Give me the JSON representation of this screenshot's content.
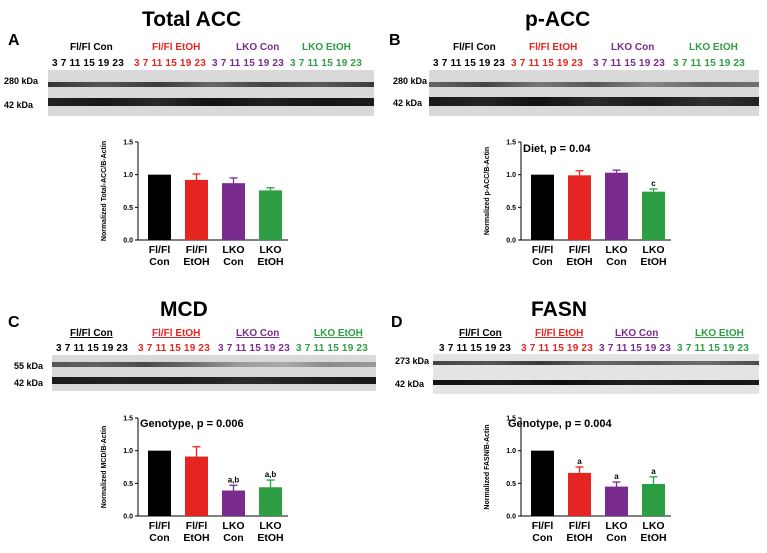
{
  "groups": [
    {
      "label": "Fl/Fl Con",
      "lanes": "3 7 11 15 19 23",
      "color": "#000000"
    },
    {
      "label": "Fl/Fl EtOH",
      "lanes": "3 7 11 15 19 23",
      "color": "#e52521"
    },
    {
      "label": "LKO Con",
      "lanes": "3 7 11 15 19 23",
      "color": "#7a2c8e"
    },
    {
      "label": "LKO EtOH",
      "lanes": "3 7 11 15 19 23",
      "color": "#2e9e44"
    }
  ],
  "panels": {
    "A": {
      "letter": "A",
      "title": "Total ACC",
      "band_top": "280 kDa",
      "band_bottom": "42 kDa",
      "stat": ""
    },
    "B": {
      "letter": "B",
      "title": "p-ACC",
      "band_top": "280 kDa",
      "band_bottom": "42 kDa",
      "stat": "Diet, p = 0.04"
    },
    "C": {
      "letter": "C",
      "title": "MCD",
      "band_top": "55 kDa",
      "band_bottom": "42 kDa",
      "stat": "Genotype, p = 0.006"
    },
    "D": {
      "letter": "D",
      "title": "FASN",
      "band_top": "273 kDa",
      "band_bottom": "42 kDa",
      "stat": "Genotype, p = 0.004"
    }
  },
  "chart_data": [
    {
      "type": "bar",
      "panel": "A",
      "categories": [
        "Fl/Fl Con",
        "Fl/Fl EtOH",
        "LKO Con",
        "LKO EtOH"
      ],
      "category_lines": [
        [
          "Fl/Fl",
          "Con"
        ],
        [
          "Fl/Fl",
          "EtOH"
        ],
        [
          "LKO",
          "Con"
        ],
        [
          "LKO",
          "EtOH"
        ]
      ],
      "values": [
        1.0,
        0.92,
        0.87,
        0.76
      ],
      "errors": [
        0,
        0.09,
        0.08,
        0.04
      ],
      "annotations": [
        "",
        "",
        "",
        ""
      ],
      "ylabel": "Normalized Total-ACC/B-Actin",
      "ylim": [
        0,
        1.5
      ],
      "yticks": [
        "0.0",
        "0.5",
        "1.0",
        "1.5"
      ],
      "colors": [
        "#000000",
        "#e52521",
        "#7a2c8e",
        "#2e9e44"
      ]
    },
    {
      "type": "bar",
      "panel": "B",
      "categories": [
        "Fl/Fl Con",
        "Fl/Fl EtOH",
        "LKO Con",
        "LKO EtOH"
      ],
      "category_lines": [
        [
          "Fl/Fl",
          "Con"
        ],
        [
          "Fl/Fl",
          "EtOH"
        ],
        [
          "LKO",
          "Con"
        ],
        [
          "LKO",
          "EtOH"
        ]
      ],
      "values": [
        1.0,
        0.99,
        1.03,
        0.74
      ],
      "errors": [
        0,
        0.07,
        0.04,
        0.04
      ],
      "annotations": [
        "",
        "",
        "",
        "c"
      ],
      "ylabel": "Normalized p-ACC/B-Actin",
      "ylim": [
        0,
        1.5
      ],
      "yticks": [
        "0.0",
        "0.5",
        "1.0",
        "1.5"
      ],
      "colors": [
        "#000000",
        "#e52521",
        "#7a2c8e",
        "#2e9e44"
      ]
    },
    {
      "type": "bar",
      "panel": "C",
      "categories": [
        "Fl/Fl Con",
        "Fl/Fl EtOH",
        "LKO Con",
        "LKO EtOH"
      ],
      "category_lines": [
        [
          "Fl/Fl",
          "Con"
        ],
        [
          "Fl/Fl",
          "EtOH"
        ],
        [
          "LKO",
          "Con"
        ],
        [
          "LKO",
          "EtOH"
        ]
      ],
      "values": [
        1.0,
        0.91,
        0.39,
        0.44
      ],
      "errors": [
        0,
        0.15,
        0.08,
        0.11
      ],
      "annotations": [
        "",
        "",
        "a,b",
        "a,b"
      ],
      "ylabel": "Normalized MCD/B-Actin",
      "ylim": [
        0,
        1.5
      ],
      "yticks": [
        "0.0",
        "0.5",
        "1.0",
        "1.5"
      ],
      "colors": [
        "#000000",
        "#e52521",
        "#7a2c8e",
        "#2e9e44"
      ]
    },
    {
      "type": "bar",
      "panel": "D",
      "categories": [
        "Fl/Fl Con",
        "Fl/Fl EtOH",
        "LKO Con",
        "LKO EtOH"
      ],
      "category_lines": [
        [
          "Fl/Fl",
          "Con"
        ],
        [
          "Fl/Fl",
          "EtOH"
        ],
        [
          "LKO",
          "Con"
        ],
        [
          "LKO",
          "EtOH"
        ]
      ],
      "values": [
        1.0,
        0.66,
        0.45,
        0.49
      ],
      "errors": [
        0,
        0.09,
        0.07,
        0.11
      ],
      "annotations": [
        "",
        "a",
        "a",
        "a"
      ],
      "ylabel": "Normalized FASN/B-Actin",
      "ylim": [
        0,
        1.5
      ],
      "yticks": [
        "0.0",
        "0.5",
        "1.0",
        "1.5"
      ],
      "colors": [
        "#000000",
        "#e52521",
        "#7a2c8e",
        "#2e9e44"
      ]
    }
  ]
}
